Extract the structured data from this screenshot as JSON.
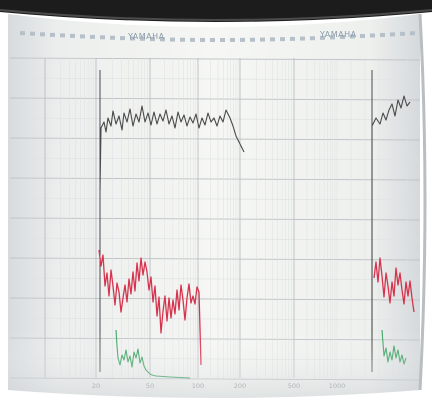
{
  "photo": {
    "brand_left": "YAMAHA",
    "brand_right": "YAMAHA",
    "x_ticks": [
      "20",
      "50",
      "100",
      "200",
      "500",
      "1000"
    ],
    "tick_positions": [
      96,
      150,
      198,
      240,
      294,
      337
    ],
    "colors": {
      "paper": "#f4f5f1",
      "grid": "#b9bec3",
      "minor_grid": "#dde0e2",
      "trace_black": "#4a4a4a",
      "trace_red": "#d6344e",
      "trace_green": "#3aa160",
      "rim_dark": "#1c1c1c"
    },
    "traces": {
      "black_top": [
        [
          100,
          190
        ],
        [
          101,
          128
        ],
        [
          104,
          122
        ],
        [
          106,
          132
        ],
        [
          108,
          118
        ],
        [
          111,
          126
        ],
        [
          113,
          111
        ],
        [
          116,
          124
        ],
        [
          119,
          116
        ],
        [
          122,
          130
        ],
        [
          124,
          113
        ],
        [
          127,
          122
        ],
        [
          130,
          109
        ],
        [
          133,
          126
        ],
        [
          136,
          114
        ],
        [
          139,
          122
        ],
        [
          142,
          106
        ],
        [
          145,
          122
        ],
        [
          148,
          113
        ],
        [
          151,
          125
        ],
        [
          154,
          112
        ],
        [
          157,
          124
        ],
        [
          160,
          114
        ],
        [
          163,
          121
        ],
        [
          166,
          110
        ],
        [
          169,
          124
        ],
        [
          172,
          116
        ],
        [
          175,
          128
        ],
        [
          178,
          112
        ],
        [
          181,
          122
        ],
        [
          184,
          115
        ],
        [
          187,
          126
        ],
        [
          190,
          117
        ],
        [
          193,
          123
        ],
        [
          196,
          114
        ],
        [
          199,
          128
        ],
        [
          202,
          118
        ],
        [
          205,
          125
        ],
        [
          208,
          113
        ],
        [
          211,
          122
        ],
        [
          214,
          118
        ],
        [
          217,
          126
        ],
        [
          220,
          116
        ],
        [
          223,
          122
        ],
        [
          226,
          110
        ],
        [
          230,
          118
        ],
        [
          233,
          126
        ],
        [
          236,
          136
        ],
        [
          240,
          144
        ],
        [
          244,
          152
        ]
      ],
      "black_right": [
        [
          372,
          360
        ],
        [
          372,
          126
        ],
        [
          376,
          118
        ],
        [
          380,
          124
        ],
        [
          383,
          113
        ],
        [
          386,
          120
        ],
        [
          389,
          110
        ],
        [
          392,
          104
        ],
        [
          395,
          116
        ],
        [
          398,
          100
        ],
        [
          401,
          108
        ],
        [
          404,
          96
        ],
        [
          407,
          106
        ],
        [
          410,
          102
        ]
      ],
      "red_left": [
        [
          99,
          250
        ],
        [
          101,
          266
        ],
        [
          103,
          255
        ],
        [
          105,
          286
        ],
        [
          107,
          273
        ],
        [
          109,
          296
        ],
        [
          111,
          270
        ],
        [
          113,
          286
        ],
        [
          115,
          305
        ],
        [
          117,
          283
        ],
        [
          119,
          292
        ],
        [
          121,
          312
        ],
        [
          123,
          298
        ],
        [
          125,
          285
        ],
        [
          127,
          302
        ],
        [
          129,
          279
        ],
        [
          131,
          294
        ],
        [
          133,
          272
        ],
        [
          135,
          291
        ],
        [
          137,
          263
        ],
        [
          139,
          281
        ],
        [
          141,
          258
        ],
        [
          143,
          275
        ],
        [
          145,
          262
        ],
        [
          147,
          272
        ],
        [
          149,
          290
        ],
        [
          151,
          277
        ],
        [
          153,
          302
        ],
        [
          155,
          286
        ],
        [
          157,
          316
        ],
        [
          159,
          297
        ],
        [
          161,
          333
        ],
        [
          163,
          311
        ],
        [
          165,
          296
        ],
        [
          167,
          321
        ],
        [
          169,
          298
        ],
        [
          171,
          318
        ],
        [
          173,
          300
        ],
        [
          175,
          314
        ],
        [
          177,
          290
        ],
        [
          179,
          310
        ],
        [
          181,
          285
        ],
        [
          183,
          300
        ],
        [
          185,
          320
        ],
        [
          187,
          298
        ],
        [
          189,
          284
        ],
        [
          191,
          303
        ],
        [
          193,
          296
        ],
        [
          195,
          304
        ],
        [
          197,
          287
        ],
        [
          199,
          292
        ],
        [
          201,
          365
        ]
      ],
      "red_right": [
        [
          374,
          278
        ],
        [
          376,
          262
        ],
        [
          378,
          282
        ],
        [
          380,
          258
        ],
        [
          382,
          276
        ],
        [
          384,
          297
        ],
        [
          386,
          273
        ],
        [
          388,
          286
        ],
        [
          390,
          303
        ],
        [
          392,
          282
        ],
        [
          394,
          296
        ],
        [
          396,
          268
        ],
        [
          398,
          285
        ],
        [
          400,
          273
        ],
        [
          402,
          290
        ],
        [
          404,
          304
        ],
        [
          406,
          282
        ],
        [
          408,
          296
        ],
        [
          410,
          281
        ],
        [
          412,
          298
        ],
        [
          414,
          312
        ]
      ],
      "green_left": [
        [
          116,
          330
        ],
        [
          117,
          346
        ],
        [
          118,
          358
        ],
        [
          120,
          365
        ],
        [
          122,
          355
        ],
        [
          124,
          360
        ],
        [
          126,
          350
        ],
        [
          128,
          362
        ],
        [
          130,
          356
        ],
        [
          132,
          367
        ],
        [
          134,
          352
        ],
        [
          136,
          358
        ],
        [
          138,
          349
        ],
        [
          140,
          363
        ],
        [
          142,
          357
        ],
        [
          144,
          366
        ],
        [
          146,
          370
        ],
        [
          148,
          372
        ],
        [
          150,
          374
        ],
        [
          152,
          375
        ],
        [
          156,
          376
        ],
        [
          170,
          377
        ],
        [
          190,
          378
        ]
      ],
      "green_right": [
        [
          382,
          330
        ],
        [
          384,
          356
        ],
        [
          386,
          348
        ],
        [
          388,
          362
        ],
        [
          390,
          352
        ],
        [
          392,
          360
        ],
        [
          394,
          346
        ],
        [
          396,
          358
        ],
        [
          398,
          350
        ],
        [
          400,
          362
        ],
        [
          402,
          355
        ],
        [
          404,
          364
        ],
        [
          406,
          358
        ]
      ]
    }
  }
}
